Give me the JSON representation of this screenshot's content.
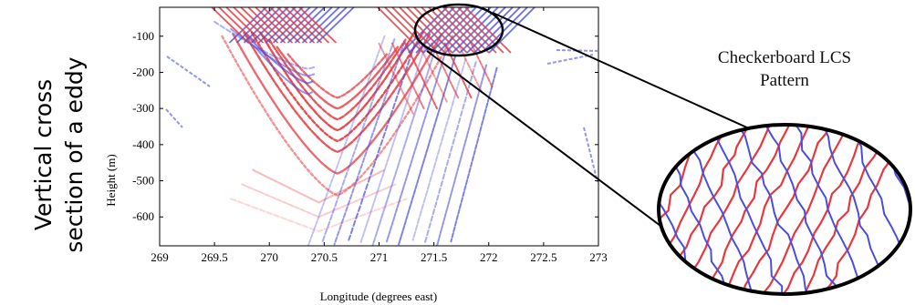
{
  "side_label": {
    "line1": "Vertical cross",
    "line2": "section of a eddy"
  },
  "callout": {
    "line1": "Checkerboard LCS",
    "line2": "Pattern"
  },
  "plot": {
    "xlabel": "Longitude (degrees east)",
    "ylabel": "Height (m)",
    "xlim": [
      269,
      273
    ],
    "ylim": [
      -680,
      -20
    ],
    "xticks": [
      "269",
      "269.5",
      "270",
      "270.5",
      "271",
      "271.5",
      "272",
      "272.5",
      "273"
    ],
    "yticks": [
      "-100",
      "-200",
      "-300",
      "-400",
      "-500",
      "-600"
    ]
  },
  "colors": {
    "red": "#e8383d",
    "blue": "#4a4ee0",
    "axis": "#000000"
  }
}
